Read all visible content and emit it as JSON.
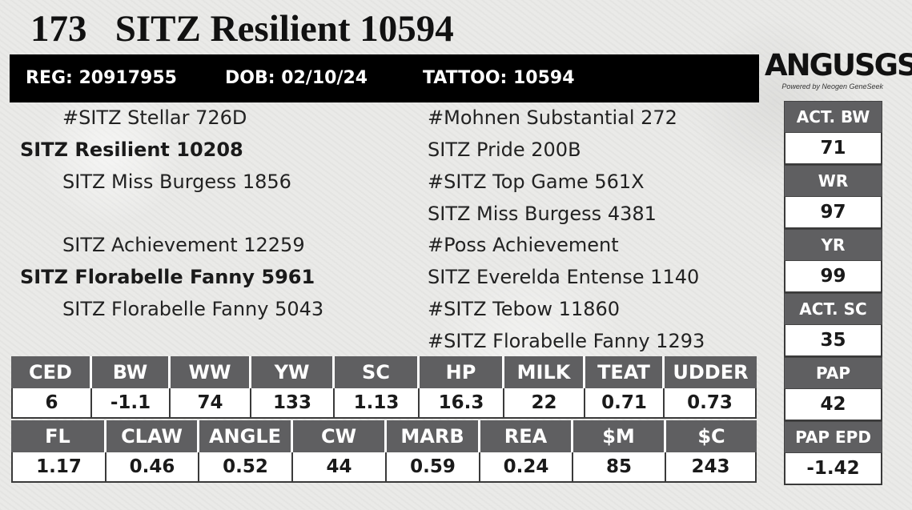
{
  "title": "173   SITZ Resilient 10594",
  "reg_bar": {
    "reg": "REG: 20917955",
    "dob": "DOB: 02/10/24",
    "tattoo": "TATTOO: 10594"
  },
  "logo": {
    "main": "ANGUSGS",
    "sub": "Powered by Neogen GeneSeek"
  },
  "pedigree": {
    "left": [
      "#SITZ Stellar 726D",
      "SITZ Resilient 10208",
      "SITZ Miss Burgess 1856",
      "SITZ Achievement 12259",
      "SITZ Florabelle Fanny 5961",
      "SITZ Florabelle Fanny 5043"
    ],
    "right": [
      "#Mohnen Substantial 272",
      "SITZ Pride 200B",
      "#SITZ Top Game 561X",
      "SITZ Miss Burgess 4381",
      "#Poss Achievement",
      "SITZ Everelda Entense 1140",
      "#SITZ Tebow 11860",
      "#SITZ Florabelle Fanny 1293"
    ]
  },
  "stats": [
    {
      "label": "ACT. BW",
      "value": "71"
    },
    {
      "label": "WR",
      "value": "97"
    },
    {
      "label": "YR",
      "value": "99"
    },
    {
      "label": "ACT. SC",
      "value": "35"
    },
    {
      "label": "PAP",
      "value": "42"
    },
    {
      "label": "PAP EPD",
      "value": "-1.42"
    }
  ],
  "epd_row1": {
    "headers": [
      "CED",
      "BW",
      "WW",
      "YW",
      "SC",
      "HP",
      "MILK",
      "TEAT",
      "UDDER"
    ],
    "values": [
      "6",
      "-1.1",
      "74",
      "133",
      "1.13",
      "16.3",
      "22",
      "0.71",
      "0.73"
    ]
  },
  "epd_row2": {
    "headers": [
      "FL",
      "CLAW",
      "ANGLE",
      "CW",
      "MARB",
      "REA",
      "$M",
      "$C"
    ],
    "values": [
      "1.17",
      "0.46",
      "0.52",
      "44",
      "0.59",
      "0.24",
      "85",
      "243"
    ]
  }
}
